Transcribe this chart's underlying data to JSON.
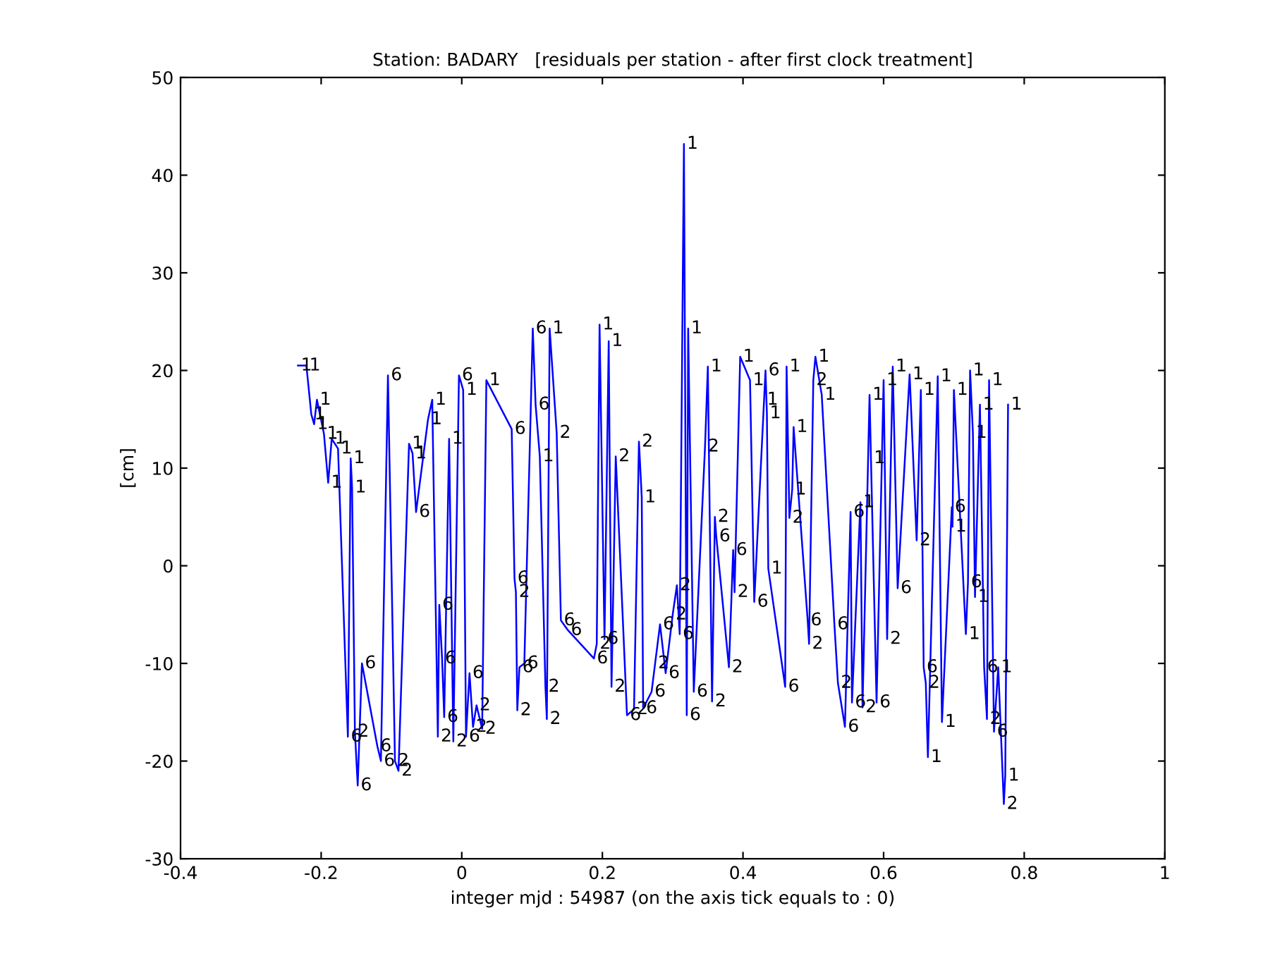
{
  "chart_data": {
    "type": "line",
    "title": "Station: BADARY   [residuals per station - after first clock treatment]",
    "xlabel": "integer mjd : 54987 (on the axis tick equals to : 0)",
    "ylabel": "[cm]",
    "xlim": [
      -0.4,
      1
    ],
    "ylim": [
      -30,
      50
    ],
    "xticks": [
      -0.4,
      -0.2,
      0,
      0.2,
      0.4,
      0.6,
      0.8,
      1
    ],
    "yticks": [
      -30,
      -20,
      -10,
      0,
      10,
      20,
      30,
      40,
      50
    ],
    "grid": false,
    "x": [
      -0.233,
      -0.221,
      -0.214,
      -0.21,
      -0.206,
      -0.196,
      -0.19,
      -0.185,
      -0.176,
      -0.162,
      -0.158,
      -0.156,
      -0.152,
      -0.148,
      -0.142,
      -0.12,
      -0.115,
      -0.105,
      -0.095,
      -0.09,
      -0.075,
      -0.07,
      -0.065,
      -0.048,
      -0.042,
      -0.034,
      -0.032,
      -0.028,
      -0.025,
      -0.018,
      -0.012,
      -0.004,
      0.002,
      0.006,
      0.011,
      0.016,
      0.021,
      0.029,
      0.035,
      0.071,
      0.075,
      0.077,
      0.079,
      0.082,
      0.089,
      0.101,
      0.105,
      0.111,
      0.119,
      0.121,
      0.125,
      0.135,
      0.141,
      0.151,
      0.188,
      0.192,
      0.196,
      0.203,
      0.209,
      0.213,
      0.219,
      0.235,
      0.245,
      0.252,
      0.256,
      0.258,
      0.27,
      0.275,
      0.282,
      0.29,
      0.3,
      0.306,
      0.31,
      0.316,
      0.32,
      0.322,
      0.33,
      0.346,
      0.35,
      0.356,
      0.36,
      0.362,
      0.38,
      0.386,
      0.388,
      0.396,
      0.41,
      0.416,
      0.43,
      0.432,
      0.434,
      0.436,
      0.46,
      0.462,
      0.466,
      0.47,
      0.472,
      0.492,
      0.494,
      0.5,
      0.503,
      0.512,
      0.53,
      0.535,
      0.545,
      0.553,
      0.555,
      0.567,
      0.57,
      0.58,
      0.582,
      0.59,
      0.6,
      0.605,
      0.613,
      0.62,
      0.637,
      0.647,
      0.653,
      0.657,
      0.66,
      0.663,
      0.677,
      0.683,
      0.697,
      0.698,
      0.7,
      0.717,
      0.72,
      0.723,
      0.727,
      0.73,
      0.737,
      0.743,
      0.747,
      0.75,
      0.757,
      0.763,
      0.771,
      0.773,
      0.777
    ],
    "series": [
      {
        "color": "#0000ff",
        "values": [
          20.5,
          20.5,
          15.5,
          14.5,
          17.0,
          13.5,
          8.5,
          13.0,
          12.0,
          -17.5,
          11.0,
          8.0,
          -17.0,
          -22.5,
          -10.0,
          -18.5,
          -20.0,
          19.5,
          -20.0,
          -21.0,
          12.5,
          11.5,
          5.5,
          15.0,
          17.0,
          -17.5,
          -4.0,
          -9.5,
          -15.5,
          13.0,
          -18.0,
          19.5,
          18.0,
          -17.5,
          -11.0,
          -16.5,
          -14.3,
          -16.7,
          19.0,
          14.0,
          -1.3,
          -2.7,
          -14.8,
          -10.4,
          -10.0,
          24.3,
          16.5,
          11.2,
          -12.4,
          -15.7,
          24.3,
          13.6,
          -5.6,
          -6.6,
          -9.5,
          -8.0,
          24.7,
          -7.5,
          23.0,
          -12.4,
          11.2,
          -15.3,
          -14.7,
          12.7,
          7.0,
          -14.6,
          -12.9,
          -10.0,
          -6.0,
          -11.0,
          -5.0,
          -2.0,
          -7.0,
          43.2,
          -15.3,
          24.3,
          -12.9,
          12.2,
          20.4,
          -13.9,
          5.0,
          3.0,
          -10.4,
          1.6,
          -2.7,
          21.4,
          19.0,
          -3.7,
          17.0,
          20.0,
          15.6,
          -0.3,
          -12.4,
          20.4,
          4.9,
          7.8,
          14.2,
          -5.6,
          -8.0,
          19.0,
          21.4,
          17.5,
          -6.0,
          -12.0,
          -16.5,
          5.5,
          -14.0,
          6.5,
          -14.5,
          17.5,
          11.0,
          -14.0,
          19.0,
          -7.5,
          20.4,
          -2.3,
          19.6,
          2.6,
          18.0,
          -10.4,
          -12.0,
          -19.6,
          19.4,
          -16.0,
          6.0,
          4.0,
          18.0,
          -7.0,
          -1.7,
          20.0,
          13.6,
          -3.2,
          16.5,
          -10.4,
          -15.7,
          19.0,
          -17.0,
          -10.4,
          -24.4,
          -21.5,
          16.5
        ]
      }
    ],
    "annotations": [
      {
        "text": "1",
        "x": -0.233,
        "y": 20.5
      },
      {
        "text": "1",
        "x": -0.221,
        "y": 20.5
      },
      {
        "text": "1",
        "x": -0.214,
        "y": 15.5
      },
      {
        "text": "1",
        "x": -0.21,
        "y": 14.5
      },
      {
        "text": "1",
        "x": -0.206,
        "y": 17.0
      },
      {
        "text": "1",
        "x": -0.196,
        "y": 13.5
      },
      {
        "text": "1",
        "x": -0.19,
        "y": 8.5
      },
      {
        "text": "1",
        "x": -0.185,
        "y": 13.0
      },
      {
        "text": "1",
        "x": -0.176,
        "y": 12.0
      },
      {
        "text": "6",
        "x": -0.162,
        "y": -17.5
      },
      {
        "text": "1",
        "x": -0.158,
        "y": 11.0
      },
      {
        "text": "1",
        "x": -0.156,
        "y": 8.0
      },
      {
        "text": "2",
        "x": -0.152,
        "y": -17.0
      },
      {
        "text": "6",
        "x": -0.148,
        "y": -22.5
      },
      {
        "text": "6",
        "x": -0.142,
        "y": -10.0
      },
      {
        "text": "6",
        "x": -0.12,
        "y": -18.5
      },
      {
        "text": "6",
        "x": -0.115,
        "y": -20.0
      },
      {
        "text": "6",
        "x": -0.105,
        "y": 19.5
      },
      {
        "text": "2",
        "x": -0.095,
        "y": -20.0
      },
      {
        "text": "2",
        "x": -0.09,
        "y": -21.0
      },
      {
        "text": "1",
        "x": -0.075,
        "y": 12.5
      },
      {
        "text": "1",
        "x": -0.07,
        "y": 11.5
      },
      {
        "text": "6",
        "x": -0.065,
        "y": 5.5
      },
      {
        "text": "1",
        "x": -0.048,
        "y": 15.0
      },
      {
        "text": "1",
        "x": -0.042,
        "y": 17.0
      },
      {
        "text": "2",
        "x": -0.034,
        "y": -17.5
      },
      {
        "text": "6",
        "x": -0.032,
        "y": -4.0
      },
      {
        "text": "6",
        "x": -0.028,
        "y": -9.5
      },
      {
        "text": "6",
        "x": -0.025,
        "y": -15.5
      },
      {
        "text": "1",
        "x": -0.018,
        "y": 13.0
      },
      {
        "text": "2",
        "x": -0.012,
        "y": -18.0
      },
      {
        "text": "6",
        "x": -0.004,
        "y": 19.5
      },
      {
        "text": "1",
        "x": 0.002,
        "y": 18.0
      },
      {
        "text": "6",
        "x": 0.006,
        "y": -17.5
      },
      {
        "text": "6",
        "x": 0.011,
        "y": -11.0
      },
      {
        "text": "2",
        "x": 0.016,
        "y": -16.5
      },
      {
        "text": "2",
        "x": 0.021,
        "y": -14.3
      },
      {
        "text": "2",
        "x": 0.029,
        "y": -16.7
      },
      {
        "text": "1",
        "x": 0.035,
        "y": 19.0
      },
      {
        "text": "6",
        "x": 0.071,
        "y": 14.0
      },
      {
        "text": "6",
        "x": 0.075,
        "y": -1.3
      },
      {
        "text": "2",
        "x": 0.077,
        "y": -2.7
      },
      {
        "text": "2",
        "x": 0.079,
        "y": -14.8
      },
      {
        "text": "6",
        "x": 0.082,
        "y": -10.4
      },
      {
        "text": "6",
        "x": 0.089,
        "y": -10.0
      },
      {
        "text": "6",
        "x": 0.101,
        "y": 24.3
      },
      {
        "text": "6",
        "x": 0.105,
        "y": 16.5
      },
      {
        "text": "1",
        "x": 0.111,
        "y": 11.2
      },
      {
        "text": "2",
        "x": 0.119,
        "y": -12.4
      },
      {
        "text": "2",
        "x": 0.121,
        "y": -15.7
      },
      {
        "text": "1",
        "x": 0.125,
        "y": 24.3
      },
      {
        "text": "2",
        "x": 0.135,
        "y": 13.6
      },
      {
        "text": "6",
        "x": 0.141,
        "y": -5.6
      },
      {
        "text": "6",
        "x": 0.151,
        "y": -6.6
      },
      {
        "text": "6",
        "x": 0.188,
        "y": -9.5
      },
      {
        "text": "2",
        "x": 0.192,
        "y": -8.0
      },
      {
        "text": "1",
        "x": 0.196,
        "y": 24.7
      },
      {
        "text": "6",
        "x": 0.203,
        "y": -7.5
      },
      {
        "text": "1",
        "x": 0.209,
        "y": 23.0
      },
      {
        "text": "2",
        "x": 0.213,
        "y": -12.4
      },
      {
        "text": "2",
        "x": 0.219,
        "y": 11.2
      },
      {
        "text": "6",
        "x": 0.235,
        "y": -15.3
      },
      {
        "text": "2",
        "x": 0.245,
        "y": -14.7
      },
      {
        "text": "2",
        "x": 0.252,
        "y": 12.7
      },
      {
        "text": "1",
        "x": 0.256,
        "y": 7.0
      },
      {
        "text": "6",
        "x": 0.258,
        "y": -14.6
      },
      {
        "text": "6",
        "x": 0.27,
        "y": -12.9
      },
      {
        "text": "2",
        "x": 0.275,
        "y": -10.0
      },
      {
        "text": "6",
        "x": 0.282,
        "y": -6.0
      },
      {
        "text": "6",
        "x": 0.29,
        "y": -11.0
      },
      {
        "text": "2",
        "x": 0.3,
        "y": -5.0
      },
      {
        "text": "2",
        "x": 0.306,
        "y": -2.0
      },
      {
        "text": "6",
        "x": 0.31,
        "y": -7.0
      },
      {
        "text": "1",
        "x": 0.316,
        "y": 43.2
      },
      {
        "text": "6",
        "x": 0.32,
        "y": -15.3
      },
      {
        "text": "1",
        "x": 0.322,
        "y": 24.3
      },
      {
        "text": "6",
        "x": 0.33,
        "y": -12.9
      },
      {
        "text": "2",
        "x": 0.346,
        "y": 12.2
      },
      {
        "text": "1",
        "x": 0.35,
        "y": 20.4
      },
      {
        "text": "2",
        "x": 0.356,
        "y": -13.9
      },
      {
        "text": "2",
        "x": 0.36,
        "y": 5.0
      },
      {
        "text": "6",
        "x": 0.362,
        "y": 3.0
      },
      {
        "text": "2",
        "x": 0.38,
        "y": -10.4
      },
      {
        "text": "6",
        "x": 0.386,
        "y": 1.6
      },
      {
        "text": "2",
        "x": 0.388,
        "y": -2.7
      },
      {
        "text": "1",
        "x": 0.396,
        "y": 21.4
      },
      {
        "text": "1",
        "x": 0.41,
        "y": 19.0
      },
      {
        "text": "6",
        "x": 0.416,
        "y": -3.7
      },
      {
        "text": "1",
        "x": 0.43,
        "y": 17.0
      },
      {
        "text": "6",
        "x": 0.432,
        "y": 20.0
      },
      {
        "text": "1",
        "x": 0.434,
        "y": 15.6
      },
      {
        "text": "1",
        "x": 0.436,
        "y": -0.3
      },
      {
        "text": "6",
        "x": 0.46,
        "y": -12.4
      },
      {
        "text": "1",
        "x": 0.462,
        "y": 20.4
      },
      {
        "text": "2",
        "x": 0.466,
        "y": 4.9
      },
      {
        "text": "1",
        "x": 0.47,
        "y": 7.8
      },
      {
        "text": "1",
        "x": 0.472,
        "y": 14.2
      },
      {
        "text": "6",
        "x": 0.492,
        "y": -5.6
      },
      {
        "text": "2",
        "x": 0.494,
        "y": -8.0
      },
      {
        "text": "2",
        "x": 0.5,
        "y": 19.0
      },
      {
        "text": "1",
        "x": 0.503,
        "y": 21.4
      },
      {
        "text": "1",
        "x": 0.512,
        "y": 17.5
      },
      {
        "text": "6",
        "x": 0.53,
        "y": -6.0
      },
      {
        "text": "2",
        "x": 0.535,
        "y": -12.0
      },
      {
        "text": "6",
        "x": 0.545,
        "y": -16.5
      },
      {
        "text": "6",
        "x": 0.553,
        "y": 5.5
      },
      {
        "text": "6",
        "x": 0.555,
        "y": -14.0
      },
      {
        "text": "1",
        "x": 0.567,
        "y": 6.5
      },
      {
        "text": "2",
        "x": 0.57,
        "y": -14.5
      },
      {
        "text": "1",
        "x": 0.58,
        "y": 17.5
      },
      {
        "text": "1",
        "x": 0.582,
        "y": 11.0
      },
      {
        "text": "6",
        "x": 0.59,
        "y": -14.0
      },
      {
        "text": "1",
        "x": 0.6,
        "y": 19.0
      },
      {
        "text": "2",
        "x": 0.605,
        "y": -7.5
      },
      {
        "text": "1",
        "x": 0.613,
        "y": 20.4
      },
      {
        "text": "6",
        "x": 0.62,
        "y": -2.3
      },
      {
        "text": "1",
        "x": 0.637,
        "y": 19.6
      },
      {
        "text": "2",
        "x": 0.647,
        "y": 2.6
      },
      {
        "text": "1",
        "x": 0.653,
        "y": 18.0
      },
      {
        "text": "6",
        "x": 0.657,
        "y": -10.4
      },
      {
        "text": "2",
        "x": 0.66,
        "y": -12.0
      },
      {
        "text": "1",
        "x": 0.663,
        "y": -19.6
      },
      {
        "text": "1",
        "x": 0.677,
        "y": 19.4
      },
      {
        "text": "1",
        "x": 0.683,
        "y": -16.0
      },
      {
        "text": "6",
        "x": 0.697,
        "y": 6.0
      },
      {
        "text": "1",
        "x": 0.698,
        "y": 4.0
      },
      {
        "text": "1",
        "x": 0.7,
        "y": 18.0
      },
      {
        "text": "1",
        "x": 0.717,
        "y": -7.0
      },
      {
        "text": "6",
        "x": 0.72,
        "y": -1.7
      },
      {
        "text": "1",
        "x": 0.723,
        "y": 20.0
      },
      {
        "text": "1",
        "x": 0.727,
        "y": 13.6
      },
      {
        "text": "1",
        "x": 0.73,
        "y": -3.2
      },
      {
        "text": "1",
        "x": 0.737,
        "y": 16.5
      },
      {
        "text": "6",
        "x": 0.743,
        "y": -10.4
      },
      {
        "text": "2",
        "x": 0.747,
        "y": -15.7
      },
      {
        "text": "1",
        "x": 0.75,
        "y": 19.0
      },
      {
        "text": "6",
        "x": 0.757,
        "y": -17.0
      },
      {
        "text": "1",
        "x": 0.763,
        "y": -10.4
      },
      {
        "text": "2",
        "x": 0.771,
        "y": -24.4
      },
      {
        "text": "1",
        "x": 0.773,
        "y": -21.5
      },
      {
        "text": "1",
        "x": 0.777,
        "y": 16.5
      }
    ]
  }
}
